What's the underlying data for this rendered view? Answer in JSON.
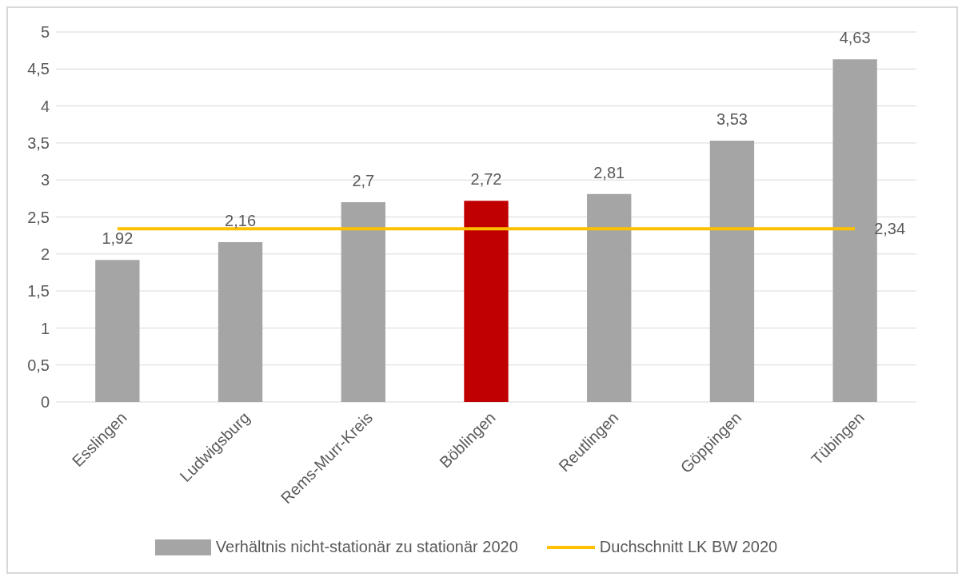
{
  "chart_data": {
    "type": "bar",
    "categories": [
      "Esslingen",
      "Ludwigsburg",
      "Rems-Murr-Kreis",
      "Böblingen",
      "Reutlingen",
      "Göppingen",
      "Tübingen"
    ],
    "series": [
      {
        "name": "Verhältnis nicht-stationär zu stationär 2020",
        "color": "#a5a5a5",
        "colors": [
          "#a5a5a5",
          "#a5a5a5",
          "#a5a5a5",
          "#c00000",
          "#a5a5a5",
          "#a5a5a5",
          "#a5a5a5"
        ],
        "values": [
          1.92,
          2.16,
          2.7,
          2.72,
          2.81,
          3.53,
          4.63
        ],
        "value_labels": [
          "1,92",
          "2,16",
          "2,7",
          "2,72",
          "2,81",
          "3,53",
          "4,63"
        ]
      },
      {
        "type": "line",
        "name": "Duchschnitt LK BW 2020",
        "color": "#ffc000",
        "values": [
          2.34,
          2.34,
          2.34,
          2.34,
          2.34,
          2.34,
          2.34
        ],
        "value_labels": [
          null,
          null,
          null,
          null,
          null,
          null,
          "2,34"
        ]
      }
    ],
    "ylim": [
      0,
      5
    ],
    "yticks": [
      0,
      {
        "value": 0.5,
        "label": "0,5"
      },
      1,
      {
        "value": 1.5,
        "label": "1,5"
      },
      2,
      {
        "value": 2.5,
        "label": "2,5"
      },
      3,
      {
        "value": 3.5,
        "label": "3,5"
      },
      4,
      {
        "value": 4.5,
        "label": "4,5"
      },
      5
    ],
    "grid": "y",
    "legend": "bottom"
  }
}
